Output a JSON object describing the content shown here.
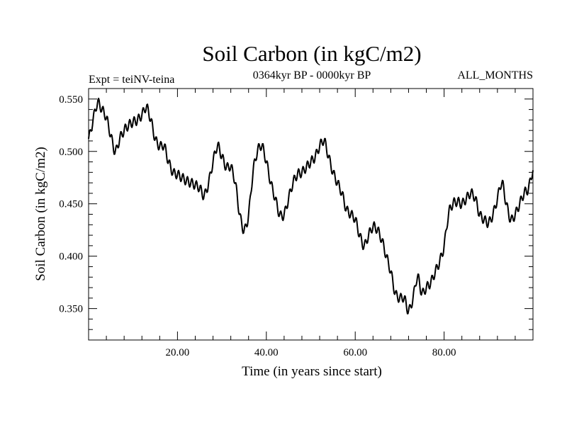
{
  "chart_data": {
    "type": "line",
    "title": "Soil Carbon (in kgC/m2)",
    "subtitle_left": "Expt = teiNV-teina",
    "subtitle_center": "0364kyr BP - 0000kyr BP",
    "subtitle_right": "ALL_MONTHS",
    "xlabel": "Time (in years since start)",
    "ylabel": "Soil Carbon (in kgC/m2)",
    "xlim": [
      0,
      100
    ],
    "ylim": [
      0.32,
      0.56
    ],
    "x_ticks": [
      20,
      40,
      60,
      80
    ],
    "x_tick_labels": [
      "20.00",
      "40.00",
      "60.00",
      "80.00"
    ],
    "y_ticks": [
      0.35,
      0.4,
      0.45,
      0.5,
      0.55
    ],
    "y_tick_labels": [
      "0.350",
      "0.400",
      "0.450",
      "0.500",
      "0.550"
    ],
    "series": [
      {
        "name": "Soil Carbon",
        "color": "#000000",
        "x": [
          0,
          1,
          2,
          3,
          4,
          5,
          6,
          7,
          8,
          9,
          10,
          11,
          12,
          13,
          14,
          15,
          16,
          17,
          18,
          19,
          20,
          21,
          22,
          23,
          24,
          25,
          26,
          27,
          28,
          29,
          30,
          31,
          32,
          33,
          34,
          35,
          36,
          37,
          38,
          39,
          40,
          41,
          42,
          43,
          44,
          45,
          46,
          47,
          48,
          49,
          50,
          51,
          52,
          53,
          54,
          55,
          56,
          57,
          58,
          59,
          60,
          61,
          62,
          63,
          64,
          65,
          66,
          67,
          68,
          69,
          70,
          71,
          72,
          73,
          74,
          75,
          76,
          77,
          78,
          79,
          80,
          81,
          82,
          83,
          84,
          85,
          86,
          87,
          88,
          89,
          90,
          91,
          92,
          93,
          94,
          95,
          96,
          97,
          98,
          99,
          100
        ],
        "values": [
          0.512,
          0.53,
          0.546,
          0.54,
          0.532,
          0.515,
          0.5,
          0.512,
          0.52,
          0.525,
          0.528,
          0.53,
          0.535,
          0.542,
          0.53,
          0.512,
          0.505,
          0.505,
          0.49,
          0.48,
          0.478,
          0.475,
          0.472,
          0.47,
          0.468,
          0.465,
          0.458,
          0.47,
          0.49,
          0.505,
          0.495,
          0.485,
          0.485,
          0.47,
          0.44,
          0.425,
          0.44,
          0.48,
          0.5,
          0.505,
          0.49,
          0.47,
          0.455,
          0.44,
          0.44,
          0.455,
          0.47,
          0.478,
          0.48,
          0.485,
          0.49,
          0.495,
          0.505,
          0.51,
          0.495,
          0.48,
          0.47,
          0.46,
          0.445,
          0.44,
          0.435,
          0.42,
          0.41,
          0.42,
          0.428,
          0.425,
          0.415,
          0.4,
          0.385,
          0.365,
          0.36,
          0.36,
          0.348,
          0.36,
          0.38,
          0.365,
          0.37,
          0.375,
          0.385,
          0.395,
          0.41,
          0.44,
          0.45,
          0.452,
          0.45,
          0.455,
          0.46,
          0.455,
          0.44,
          0.435,
          0.432,
          0.44,
          0.455,
          0.47,
          0.45,
          0.435,
          0.44,
          0.45,
          0.46,
          0.465,
          0.482
        ]
      }
    ]
  }
}
